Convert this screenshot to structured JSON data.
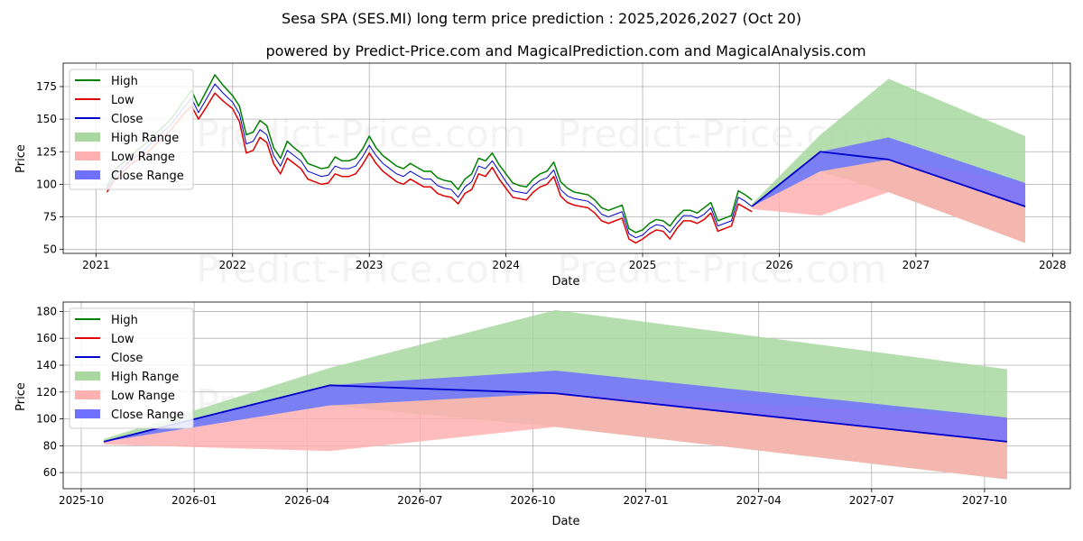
{
  "colors": {
    "high": "#008000",
    "low": "#e00000",
    "close": "#0000cc",
    "high_range": "#a8d8a0",
    "low_range": "#ffb0b0",
    "close_range": "#7070ff"
  },
  "chart_data": [
    {
      "type": "line",
      "title": "Sesa SPA (SES.MI) long term price prediction : 2025,2026,2027 (Oct 20)",
      "subtitle": "powered by Predict-Price.com and MagicalPrediction.com and MagicalAnalysis.com",
      "watermark": "Predict-Price.com",
      "xlabel": "Date",
      "ylabel": "Price",
      "xlim": [
        2020.76,
        2028.13
      ],
      "ylim": [
        47,
        193
      ],
      "grid": true,
      "legend_position": "top-left",
      "x_ticks": [
        {
          "x": 2021,
          "label": "2021"
        },
        {
          "x": 2022,
          "label": "2022"
        },
        {
          "x": 2023,
          "label": "2023"
        },
        {
          "x": 2024,
          "label": "2024"
        },
        {
          "x": 2025,
          "label": "2025"
        },
        {
          "x": 2026,
          "label": "2026"
        },
        {
          "x": 2027,
          "label": "2027"
        },
        {
          "x": 2028,
          "label": "2028"
        }
      ],
      "y_ticks": [
        50,
        75,
        100,
        125,
        150,
        175
      ],
      "history": {
        "x": [
          2021.08,
          2021.15,
          2021.25,
          2021.35,
          2021.45,
          2021.55,
          2021.65,
          2021.7,
          2021.75,
          2021.8,
          2021.87,
          2021.93,
          2022.0,
          2022.05,
          2022.1,
          2022.15,
          2022.2,
          2022.25,
          2022.3,
          2022.35,
          2022.4,
          2022.45,
          2022.5,
          2022.55,
          2022.6,
          2022.65,
          2022.7,
          2022.75,
          2022.8,
          2022.85,
          2022.9,
          2022.95,
          2023.0,
          2023.05,
          2023.1,
          2023.15,
          2023.2,
          2023.25,
          2023.3,
          2023.35,
          2023.4,
          2023.45,
          2023.5,
          2023.55,
          2023.6,
          2023.65,
          2023.7,
          2023.75,
          2023.8,
          2023.85,
          2023.9,
          2023.95,
          2024.0,
          2024.05,
          2024.1,
          2024.15,
          2024.2,
          2024.25,
          2024.3,
          2024.35,
          2024.4,
          2024.45,
          2024.5,
          2024.55,
          2024.6,
          2024.65,
          2024.7,
          2024.75,
          2024.8,
          2024.85,
          2024.9,
          2024.95,
          2025.0,
          2025.05,
          2025.1,
          2025.15,
          2025.2,
          2025.25,
          2025.3,
          2025.35,
          2025.4,
          2025.45,
          2025.5,
          2025.55,
          2025.6,
          2025.65,
          2025.7,
          2025.75,
          2025.8
        ],
        "high": [
          98,
          112,
          122,
          130,
          140,
          150,
          165,
          172,
          160,
          170,
          184,
          176,
          168,
          160,
          138,
          140,
          149,
          145,
          128,
          120,
          133,
          128,
          124,
          116,
          114,
          112,
          113,
          121,
          118,
          118,
          120,
          127,
          137,
          128,
          122,
          118,
          114,
          112,
          116,
          113,
          110,
          110,
          105,
          103,
          102,
          96,
          104,
          108,
          120,
          118,
          124,
          115,
          108,
          101,
          99,
          98,
          104,
          108,
          110,
          117,
          102,
          97,
          94,
          93,
          92,
          88,
          82,
          80,
          82,
          84,
          66,
          63,
          65,
          70,
          73,
          72,
          68,
          75,
          80,
          80,
          78,
          82,
          86,
          72,
          74,
          76,
          95,
          92,
          88
        ],
        "low": [
          94,
          105,
          115,
          122,
          132,
          142,
          155,
          160,
          150,
          158,
          170,
          164,
          158,
          148,
          124,
          126,
          136,
          132,
          116,
          108,
          120,
          116,
          112,
          104,
          102,
          100,
          101,
          108,
          106,
          106,
          108,
          115,
          124,
          116,
          110,
          106,
          102,
          100,
          104,
          101,
          98,
          98,
          93,
          91,
          90,
          85,
          93,
          96,
          108,
          106,
          113,
          104,
          97,
          90,
          89,
          88,
          94,
          98,
          100,
          106,
          91,
          86,
          84,
          83,
          82,
          78,
          72,
          70,
          72,
          74,
          58,
          55,
          58,
          62,
          65,
          64,
          58,
          66,
          72,
          72,
          70,
          73,
          78,
          64,
          66,
          68,
          85,
          82,
          79
        ],
        "close": [
          96,
          108,
          118,
          126,
          136,
          146,
          160,
          166,
          155,
          164,
          177,
          170,
          163,
          154,
          131,
          133,
          142,
          138,
          122,
          114,
          126,
          122,
          118,
          110,
          108,
          106,
          107,
          114,
          112,
          112,
          114,
          121,
          130,
          122,
          116,
          112,
          108,
          106,
          110,
          107,
          104,
          104,
          99,
          97,
          96,
          90,
          98,
          102,
          114,
          112,
          118,
          110,
          102,
          95,
          94,
          93,
          99,
          103,
          105,
          111,
          96,
          91,
          89,
          88,
          87,
          83,
          77,
          75,
          77,
          79,
          62,
          59,
          61,
          66,
          69,
          68,
          63,
          70,
          76,
          76,
          74,
          77,
          82,
          68,
          70,
          72,
          90,
          87,
          83
        ]
      },
      "forecast": {
        "x": [
          2025.8,
          2026.3,
          2026.8,
          2027.8
        ],
        "close": [
          83,
          125,
          119,
          83
        ],
        "high_range_upper": [
          85,
          138,
          181,
          137
        ],
        "high_range_lower": [
          83,
          110,
          94,
          55
        ],
        "low_range_upper": [
          83,
          110,
          119,
          101
        ],
        "low_range_lower": [
          81,
          76,
          94,
          55
        ],
        "close_range_upper": [
          83,
          125,
          136,
          101
        ],
        "close_range_lower": [
          83,
          110,
          119,
          83
        ]
      },
      "legend": [
        "High",
        "Low",
        "Close",
        "High Range",
        "Low Range",
        "Close Range"
      ]
    },
    {
      "type": "line",
      "xlabel": "Date",
      "ylabel": "Price",
      "watermark": "Predict-Price.com",
      "xlim": [
        2025.71,
        2027.94
      ],
      "ylim": [
        48,
        187
      ],
      "grid": true,
      "legend_position": "top-left",
      "x_ticks": [
        {
          "x": 2025.75,
          "label": "2025-10"
        },
        {
          "x": 2026.0,
          "label": "2026-01"
        },
        {
          "x": 2026.25,
          "label": "2026-04"
        },
        {
          "x": 2026.5,
          "label": "2026-07"
        },
        {
          "x": 2026.75,
          "label": "2026-10"
        },
        {
          "x": 2027.0,
          "label": "2027-01"
        },
        {
          "x": 2027.25,
          "label": "2027-04"
        },
        {
          "x": 2027.5,
          "label": "2027-07"
        },
        {
          "x": 2027.75,
          "label": "2027-10"
        }
      ],
      "y_ticks": [
        60,
        80,
        100,
        120,
        140,
        160,
        180
      ],
      "forecast": {
        "x": [
          2025.8,
          2026.3,
          2026.8,
          2027.8
        ],
        "close": [
          83,
          125,
          119,
          83
        ],
        "high_range_upper": [
          85,
          138,
          181,
          137
        ],
        "high_range_lower": [
          83,
          110,
          94,
          55
        ],
        "low_range_upper": [
          83,
          110,
          119,
          101
        ],
        "low_range_lower": [
          81,
          76,
          94,
          55
        ],
        "close_range_upper": [
          83,
          125,
          136,
          101
        ],
        "close_range_lower": [
          83,
          110,
          119,
          83
        ]
      },
      "legend": [
        "High",
        "Low",
        "Close",
        "High Range",
        "Low Range",
        "Close Range"
      ]
    }
  ]
}
